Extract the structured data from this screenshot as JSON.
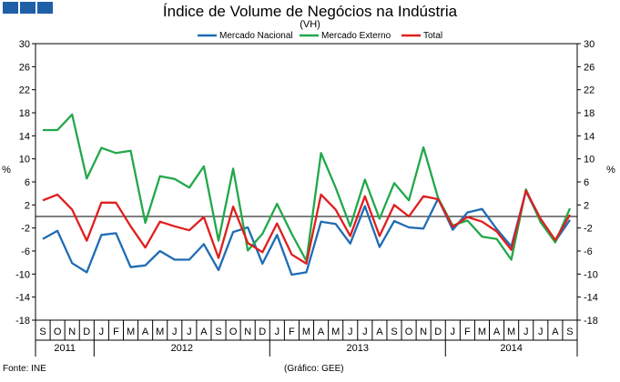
{
  "header": {
    "title": "Índice de Volume de Negócios na Indústria",
    "subtitle": "(VH)",
    "logo_color": "#1f5fa8"
  },
  "footer": {
    "source": "Fonte: INE",
    "credit": "(Gráfico: GEE)"
  },
  "chart_data": {
    "type": "line",
    "title": "Índice de Volume de Negócios na Indústria",
    "subtitle": "(VH)",
    "ylabel": "%",
    "ylabel_right": "%",
    "ylim": [
      -18,
      30
    ],
    "yticks": [
      30,
      26,
      22,
      18,
      14,
      10,
      6,
      2,
      -2,
      -6,
      -10,
      -14,
      -18
    ],
    "ytick_labels": [
      "30",
      "26",
      "22",
      "18",
      "14",
      "10",
      "6",
      "2",
      "-2",
      "-6",
      "-10",
      "-14",
      "-18"
    ],
    "grid": false,
    "legend_position": "top-center",
    "categories": [
      "S",
      "O",
      "N",
      "D",
      "J",
      "F",
      "M",
      "A",
      "M",
      "J",
      "J",
      "A",
      "S",
      "O",
      "N",
      "D",
      "J",
      "F",
      "M",
      "A",
      "M",
      "J",
      "J",
      "A",
      "S",
      "O",
      "N",
      "D",
      "J",
      "F",
      "M",
      "A",
      "M",
      "J",
      "J",
      "A",
      "S"
    ],
    "years": [
      {
        "label": "2011",
        "start": 0,
        "end": 3
      },
      {
        "label": "2012",
        "start": 4,
        "end": 15
      },
      {
        "label": "2013",
        "start": 16,
        "end": 27
      },
      {
        "label": "2014",
        "start": 28,
        "end": 36
      }
    ],
    "series": [
      {
        "name": "Mercado Nacional",
        "color": "#1f6cb5",
        "values": [
          -3.9,
          -2.5,
          -8.1,
          -9.7,
          -3.2,
          -2.9,
          -8.8,
          -8.5,
          -6.0,
          -7.5,
          -7.5,
          -4.8,
          -9.3,
          -2.7,
          -1.9,
          -8.2,
          -3.2,
          -10.1,
          -9.7,
          -0.9,
          -1.3,
          -4.7,
          1.8,
          -5.3,
          -0.8,
          -1.9,
          -2.1,
          3.1,
          -2.3,
          0.7,
          1.3,
          -2.2,
          -5.2,
          4.4,
          -0.8,
          -4.3,
          -0.6
        ]
      },
      {
        "name": "Mercado Externo",
        "color": "#21a84a",
        "values": [
          15.0,
          15.0,
          17.7,
          6.6,
          11.9,
          11.0,
          11.4,
          -1.1,
          7.0,
          6.5,
          5.0,
          8.7,
          -4.2,
          8.3,
          -5.9,
          -3.0,
          2.2,
          -3.0,
          -7.7,
          11.0,
          5.0,
          -1.7,
          6.4,
          -0.4,
          5.8,
          2.8,
          12.0,
          3.2,
          -1.6,
          -0.7,
          -3.5,
          -3.9,
          -7.5,
          4.7,
          -1.0,
          -4.5,
          1.4
        ]
      },
      {
        "name": "Total",
        "color": "#e01e1e",
        "values": [
          2.8,
          3.8,
          1.2,
          -4.2,
          2.4,
          2.4,
          -1.7,
          -5.4,
          -0.9,
          -1.7,
          -2.4,
          -0.1,
          -7.2,
          1.7,
          -4.6,
          -6.2,
          -1.2,
          -6.6,
          -8.2,
          3.8,
          1.2,
          -3.4,
          3.5,
          -3.4,
          2.0,
          0.0,
          3.5,
          3.0,
          -1.8,
          -0.1,
          -0.9,
          -2.6,
          -5.8,
          4.5,
          -0.4,
          -4.1,
          0.3
        ]
      }
    ]
  }
}
